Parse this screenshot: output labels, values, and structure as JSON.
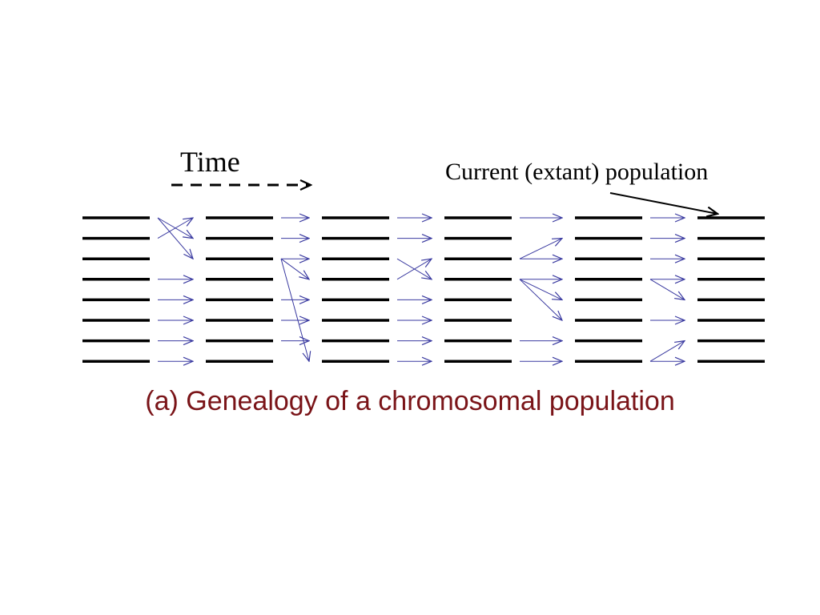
{
  "diagram": {
    "time_label": "Time",
    "current_label": "Current (extant) population",
    "caption": "(a) Genealogy of a chromosomal population",
    "generations": 6,
    "chromosomes_per_generation": 8,
    "colors": {
      "chromosome": "#000000",
      "lineage_arrow": "#3a3aa0",
      "caption": "#7a1418"
    },
    "transitions": [
      [
        1,
        0,
        0,
        3,
        4,
        5,
        6,
        7
      ],
      [
        0,
        1,
        2,
        2,
        4,
        5,
        6,
        2
      ],
      [
        0,
        1,
        3,
        2,
        4,
        5,
        6,
        7
      ],
      [
        0,
        2,
        2,
        3,
        3,
        3,
        6,
        7
      ],
      [
        0,
        1,
        2,
        3,
        3,
        5,
        7,
        7
      ]
    ]
  }
}
